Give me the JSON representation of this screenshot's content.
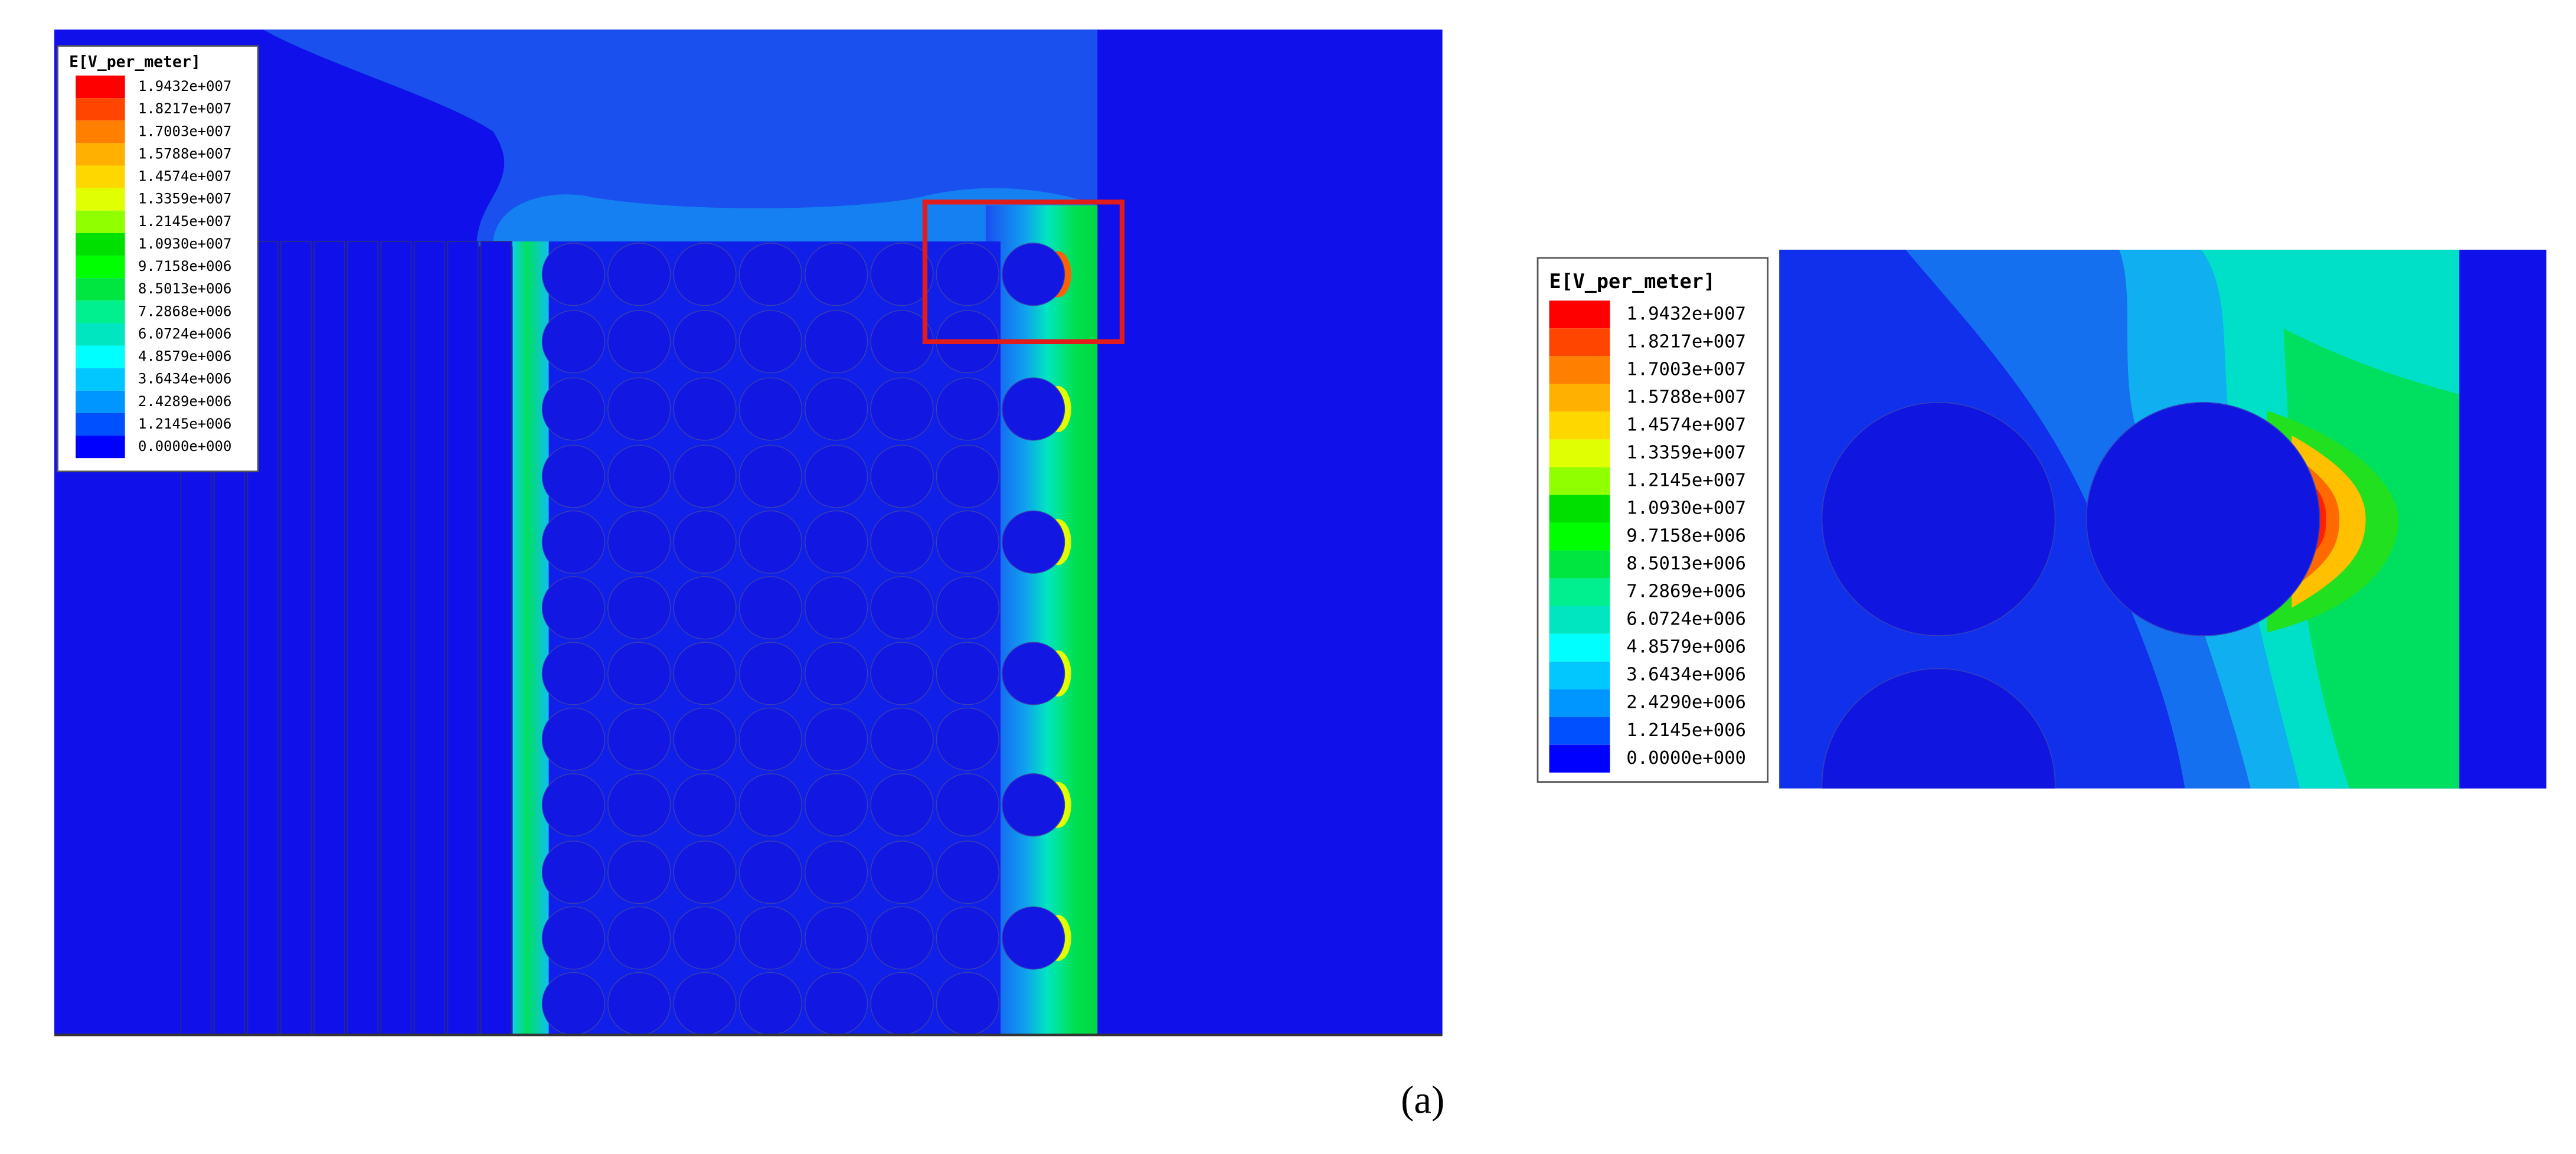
{
  "left_panel": {
    "legend": {
      "title": "E[V_per_meter]",
      "labels": [
        "1.9432e+007",
        "1.8217e+007",
        "1.7003e+007",
        "1.5788e+007",
        "1.4574e+007",
        "1.3359e+007",
        "1.2145e+007",
        "1.0930e+007",
        "9.7158e+006",
        "8.5013e+006",
        "7.2868e+006",
        "6.0724e+006",
        "4.8579e+006",
        "3.6434e+006",
        "2.4289e+006",
        "1.2145e+006",
        "0.0000e+000"
      ]
    }
  },
  "right_panel": {
    "legend": {
      "title": "E[V_per_meter]",
      "labels": [
        "1.9432e+007",
        "1.8217e+007",
        "1.7003e+007",
        "1.5788e+007",
        "1.4574e+007",
        "1.3359e+007",
        "1.2145e+007",
        "1.0930e+007",
        "9.7158e+006",
        "8.5013e+006",
        "7.2869e+006",
        "6.0724e+006",
        "4.8579e+006",
        "3.6434e+006",
        "2.4290e+006",
        "1.2145e+006",
        "0.0000e+000"
      ]
    }
  },
  "caption": "(a)"
}
